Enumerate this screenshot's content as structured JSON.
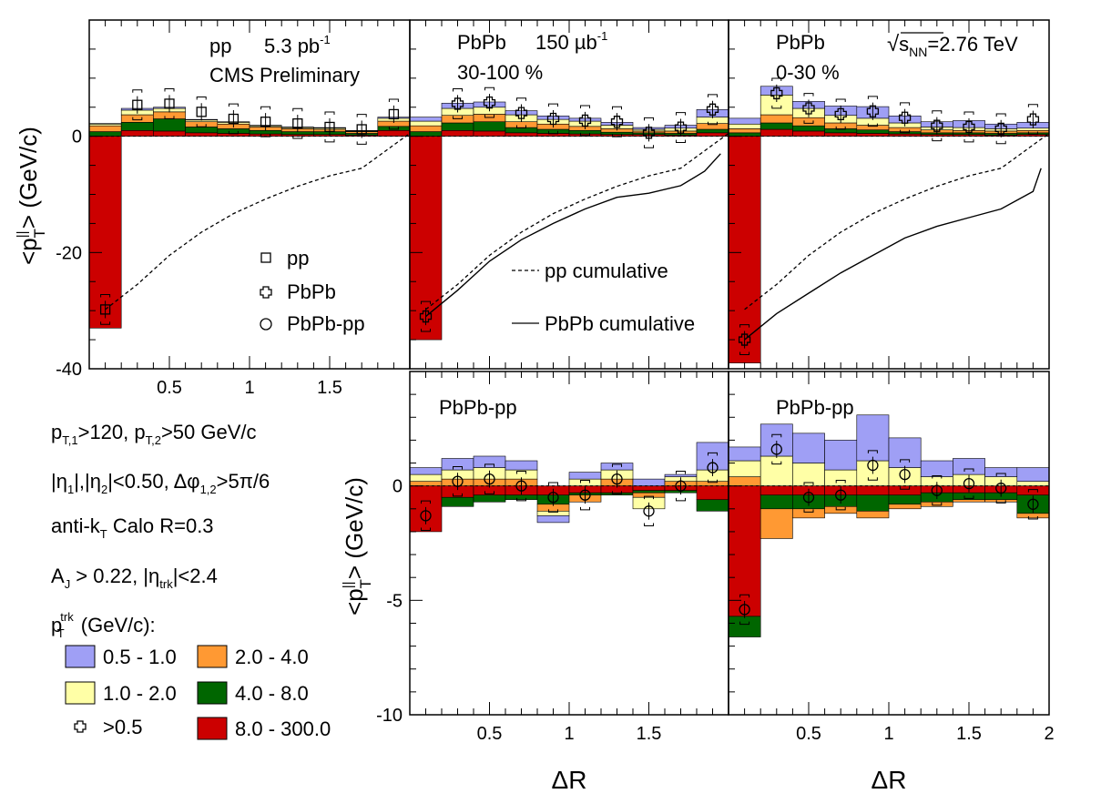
{
  "colors": {
    "p05_10": "#9f9ff5",
    "p10_20": "#ffffa6",
    "p20_40": "#ff9933",
    "p40_80": "#006600",
    "p80_300": "#cc0000"
  },
  "labels": {
    "y_axis": "<p",
    "y_sup": "||",
    "y_sub": "T",
    "y_end": "> (GeV/c)",
    "x_axis": "ΔR"
  },
  "panel_text": {
    "pp_title": "pp",
    "pp_lumi": "5.3 pb",
    "pp_lumi_sup": "-1",
    "cms": "CMS Preliminary",
    "pbpb": "PbPb",
    "pbpb_lumi": "150 µb",
    "pbpb_lumi_sup": "-1",
    "cent_peripheral": "30-100 %",
    "cent_central": "0-30 %",
    "energy_sqrt": "√",
    "energy_s": "s",
    "energy_sub": "NN",
    "energy_val": "=2.76 TeV",
    "diff_label": "PbPb-pp"
  },
  "legend": {
    "marker_pp": "pp",
    "marker_pbpb": "PbPb",
    "marker_diff": "PbPb-pp",
    "pp_cumulative": "pp cumulative",
    "pbpb_cumulative": "PbPb cumulative",
    "cut1_a": "p",
    "cut1_a_sub": "T,1",
    "cut1_b": ">120, p",
    "cut1_b_sub": "T,2",
    "cut1_c": ">50 GeV/c",
    "cut2_a": "|η",
    "cut2_a_sub": "1",
    "cut2_b": "|,|η",
    "cut2_b_sub": "2",
    "cut2_c": "|<0.50, Δφ",
    "cut2_c_sub": "1,2",
    "cut2_d": ">5π/6",
    "cut3_a": "anti-k",
    "cut3_a_sub": "T",
    "cut3_b": " Calo R=0.3",
    "cut4_a": "A",
    "cut4_a_sub": "J",
    "cut4_b": " > 0.22, |η",
    "cut4_b_sub": "trk",
    "cut4_c": "|<2.4",
    "ptbin_a": "p",
    "ptbin_sup": "trk",
    "ptbin_sub": "T",
    "ptbin_b": " (GeV/c):",
    "bin1": "0.5 - 1.0",
    "bin2": "1.0 - 2.0",
    "bin3": ">0.5",
    "bin4": "2.0 - 4.0",
    "bin5": "4.0 - 8.0",
    "bin6": "8.0 - 300.0"
  },
  "chart_data": [
    {
      "id": "pp",
      "type": "stacked-bar",
      "x_bins": [
        0,
        0.2,
        0.4,
        0.6,
        0.8,
        1.0,
        1.2,
        1.4,
        1.6,
        1.8,
        2.0
      ],
      "ylim": [
        -40,
        20
      ],
      "yticks": [
        [
          "0",
          "0"
        ],
        [
          "-20",
          "-20"
        ],
        [
          "-40",
          "-40"
        ]
      ],
      "xticks": [
        [
          "0.5",
          "0.5"
        ],
        [
          "1",
          "1"
        ],
        [
          "1.5",
          "1.5"
        ]
      ],
      "stacks": {
        "p80_300": [
          -33,
          1.0,
          0.9,
          0.6,
          0.5,
          0.4,
          0.3,
          0.3,
          0.2,
          1.0
        ],
        "p40_80": [
          0.8,
          1.4,
          2.1,
          1.0,
          0.8,
          0.6,
          0.5,
          0.5,
          0.3,
          0.7
        ],
        "p20_40": [
          1.0,
          1.3,
          1.2,
          0.9,
          0.8,
          0.6,
          0.5,
          0.4,
          0.3,
          0.9
        ],
        "p10_20": [
          0.3,
          0.8,
          0.6,
          0.3,
          0.3,
          0.2,
          0.2,
          0.2,
          0.1,
          0.5
        ],
        "p05_10": [
          0.1,
          0.3,
          0.2,
          0.1,
          0.1,
          0.1,
          0.1,
          0.1,
          0.1,
          0.2
        ]
      },
      "points": {
        "pp": [
          -29.8,
          5.4,
          5.6,
          4.2,
          3.0,
          2.5,
          2.2,
          1.6,
          1.2,
          3.8
        ]
      },
      "cumulative_pp": [
        [
          0.1,
          -29.8
        ],
        [
          0.3,
          -25.5
        ],
        [
          0.5,
          -20.5
        ],
        [
          0.7,
          -16.5
        ],
        [
          0.9,
          -13.3
        ],
        [
          1.1,
          -10.8
        ],
        [
          1.3,
          -8.6
        ],
        [
          1.5,
          -6.8
        ],
        [
          1.7,
          -5.5
        ],
        [
          1.9,
          -1.5
        ],
        [
          2.0,
          0.5
        ]
      ]
    },
    {
      "id": "pbpb_peripheral",
      "type": "stacked-bar",
      "x_bins": [
        0,
        0.2,
        0.4,
        0.6,
        0.8,
        1.0,
        1.2,
        1.4,
        1.6,
        1.8,
        2.0
      ],
      "ylim": [
        -40,
        20
      ],
      "stacks": {
        "p80_300": [
          -35,
          1.0,
          0.9,
          0.6,
          0.5,
          0.4,
          0.3,
          0.3,
          0.2,
          0.6
        ],
        "p40_80": [
          0.8,
          1.3,
          1.6,
          0.9,
          0.7,
          0.6,
          0.4,
          0.3,
          0.3,
          0.6
        ],
        "p20_40": [
          1.0,
          1.3,
          1.3,
          1.0,
          0.9,
          0.7,
          0.6,
          0.3,
          0.4,
          1.0
        ],
        "p10_20": [
          0.8,
          1.2,
          1.2,
          1.2,
          0.8,
          0.9,
          0.6,
          0.3,
          0.5,
          1.1
        ],
        "p05_10": [
          0.7,
          0.9,
          0.9,
          0.7,
          0.6,
          0.5,
          0.5,
          0.3,
          0.5,
          1.3
        ]
      },
      "points": {
        "pbpb": [
          -31,
          5.6,
          5.8,
          4.0,
          3.0,
          2.7,
          2.5,
          0.6,
          1.5,
          4.6
        ]
      },
      "cumulative_pp": [
        [
          0.1,
          -29.8
        ],
        [
          0.3,
          -25.5
        ],
        [
          0.5,
          -20.5
        ],
        [
          0.7,
          -16.5
        ],
        [
          0.9,
          -13.3
        ],
        [
          1.1,
          -10.8
        ],
        [
          1.3,
          -8.6
        ],
        [
          1.5,
          -6.8
        ],
        [
          1.7,
          -5.5
        ],
        [
          1.9,
          -1.5
        ],
        [
          2.0,
          0.5
        ]
      ],
      "cumulative_pbpb": [
        [
          0.1,
          -31
        ],
        [
          0.3,
          -26.5
        ],
        [
          0.5,
          -21.5
        ],
        [
          0.7,
          -17.8
        ],
        [
          0.9,
          -15
        ],
        [
          1.1,
          -12.5
        ],
        [
          1.3,
          -10.5
        ],
        [
          1.5,
          -9.8
        ],
        [
          1.7,
          -8.5
        ],
        [
          1.85,
          -6.0
        ],
        [
          1.95,
          -3.0
        ]
      ]
    },
    {
      "id": "pbpb_central",
      "type": "stacked-bar",
      "x_bins": [
        0,
        0.2,
        0.4,
        0.6,
        0.8,
        1.0,
        1.2,
        1.4,
        1.6,
        1.8,
        2.0
      ],
      "ylim": [
        -40,
        20
      ],
      "stacks": {
        "p80_300": [
          -39,
          1.2,
          0.9,
          0.6,
          0.5,
          0.4,
          0.3,
          0.3,
          0.2,
          0.3
        ],
        "p40_80": [
          0.6,
          1.1,
          0.9,
          0.7,
          0.6,
          0.4,
          0.3,
          0.3,
          0.3,
          0.3
        ],
        "p20_40": [
          0.7,
          1.4,
          1.4,
          1.0,
          0.8,
          0.7,
          0.5,
          0.4,
          0.4,
          0.4
        ],
        "p10_20": [
          0.8,
          3.4,
          1.6,
          1.3,
          1.2,
          0.8,
          0.5,
          0.5,
          0.4,
          0.4
        ],
        "p05_10": [
          1.0,
          1.5,
          1.2,
          1.6,
          2.0,
          1.2,
          0.9,
          1.2,
          0.8,
          1.0
        ]
      },
      "points": {
        "pbpb": [
          -35,
          7.4,
          4.8,
          3.8,
          4.3,
          3.2,
          1.8,
          1.6,
          1.3,
          2.9
        ]
      },
      "cumulative_pp": [
        [
          0.1,
          -29.8
        ],
        [
          0.3,
          -25.5
        ],
        [
          0.5,
          -20.5
        ],
        [
          0.7,
          -16.5
        ],
        [
          0.9,
          -13.3
        ],
        [
          1.1,
          -10.8
        ],
        [
          1.3,
          -8.6
        ],
        [
          1.5,
          -6.8
        ],
        [
          1.7,
          -5.5
        ],
        [
          1.9,
          -1.5
        ],
        [
          2.0,
          0.5
        ]
      ],
      "cumulative_pbpb": [
        [
          0.1,
          -35
        ],
        [
          0.3,
          -30.5
        ],
        [
          0.5,
          -27
        ],
        [
          0.7,
          -23.5
        ],
        [
          0.9,
          -20.5
        ],
        [
          1.1,
          -17.5
        ],
        [
          1.3,
          -15.5
        ],
        [
          1.5,
          -14
        ],
        [
          1.7,
          -12.5
        ],
        [
          1.9,
          -9.5
        ],
        [
          1.95,
          -5.5
        ]
      ]
    },
    {
      "id": "diff_peripheral",
      "type": "stacked-bar",
      "x_bins": [
        0,
        0.2,
        0.4,
        0.6,
        0.8,
        1.0,
        1.2,
        1.4,
        1.6,
        1.8,
        2.0
      ],
      "ylim": [
        -10,
        5
      ],
      "yticks": [
        [
          "0",
          "0"
        ],
        [
          "-5",
          "-5"
        ],
        [
          "-10",
          "-10"
        ]
      ],
      "xticks": [
        [
          "0.5",
          "0.5"
        ],
        [
          "1",
          "1"
        ],
        [
          "1.5",
          "1.5"
        ]
      ],
      "stacks": {
        "p80_300": [
          -2.0,
          -0.5,
          -0.4,
          -0.4,
          -0.4,
          -0.3,
          -0.3,
          -0.2,
          -0.2,
          -0.6
        ],
        "p40_80": [
          0.0,
          -0.4,
          -0.3,
          -0.2,
          -0.4,
          -0.1,
          -0.1,
          -0.1,
          -0.1,
          -0.5
        ],
        "p20_40": [
          0.2,
          0.3,
          0.3,
          0.3,
          -0.3,
          -0.3,
          0.3,
          -0.2,
          0.2,
          0.2
        ],
        "p10_20": [
          0.3,
          0.4,
          0.5,
          0.4,
          -0.2,
          0.3,
          0.4,
          -0.5,
          0.2,
          0.5
        ],
        "p05_10": [
          0.3,
          0.5,
          0.5,
          0.4,
          -0.3,
          0.3,
          0.3,
          0.3,
          0.1,
          1.2
        ]
      },
      "points": {
        "diff": [
          -1.3,
          0.2,
          0.3,
          0.0,
          -0.5,
          -0.4,
          0.3,
          -1.1,
          0.0,
          0.8
        ]
      }
    },
    {
      "id": "diff_central",
      "type": "stacked-bar",
      "x_bins": [
        0,
        0.2,
        0.4,
        0.6,
        0.8,
        1.0,
        1.2,
        1.4,
        1.6,
        1.8,
        2.0
      ],
      "ylim": [
        -10,
        5
      ],
      "xticks": [
        [
          "0.5",
          "0.5"
        ],
        [
          "1",
          "1"
        ],
        [
          "1.5",
          "1.5"
        ],
        [
          "2",
          "2"
        ]
      ],
      "stacks": {
        "p80_300": [
          -5.7,
          -0.4,
          -0.4,
          -0.4,
          -0.4,
          -0.4,
          -0.3,
          -0.3,
          -0.3,
          -0.4
        ],
        "p40_80": [
          -0.9,
          -0.6,
          -0.6,
          -0.5,
          -0.7,
          -0.4,
          -0.4,
          -0.3,
          -0.3,
          -0.8
        ],
        "p20_40": [
          0.4,
          -1.3,
          -0.4,
          -0.3,
          -0.3,
          -0.2,
          -0.2,
          -0.1,
          -0.1,
          -0.2
        ],
        "p10_20": [
          0.7,
          1.3,
          1.0,
          0.7,
          1.1,
          0.8,
          0.4,
          0.5,
          0.4,
          0.2
        ],
        "p05_10": [
          0.6,
          1.4,
          1.3,
          1.3,
          2.0,
          1.3,
          0.7,
          0.7,
          0.4,
          0.6
        ]
      },
      "points": {
        "diff": [
          -5.4,
          1.6,
          -0.5,
          -0.4,
          0.9,
          0.5,
          -0.2,
          0.1,
          -0.1,
          -0.8
        ]
      }
    }
  ]
}
